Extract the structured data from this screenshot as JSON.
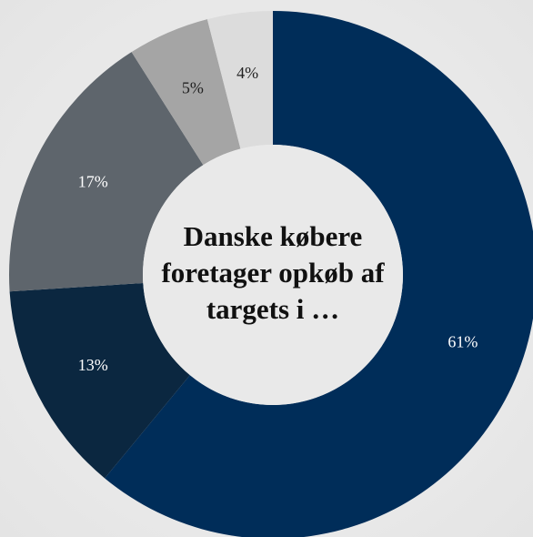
{
  "chart_data": {
    "type": "pie",
    "title": "Danske købere foretager opkøb af targets i …",
    "categories": [
      null,
      null,
      null,
      null,
      null
    ],
    "values": [
      61,
      13,
      17,
      5,
      4
    ],
    "value_labels": [
      "61%",
      "13%",
      "17%",
      "5%",
      "4%"
    ],
    "colors": [
      "#002d59",
      "#0b2740",
      "#5e656c",
      "#a5a5a5",
      "#dcdcdc"
    ],
    "label_colors": [
      "#ffffff",
      "#ffffff",
      "#ffffff",
      "#222222",
      "#222222"
    ]
  }
}
